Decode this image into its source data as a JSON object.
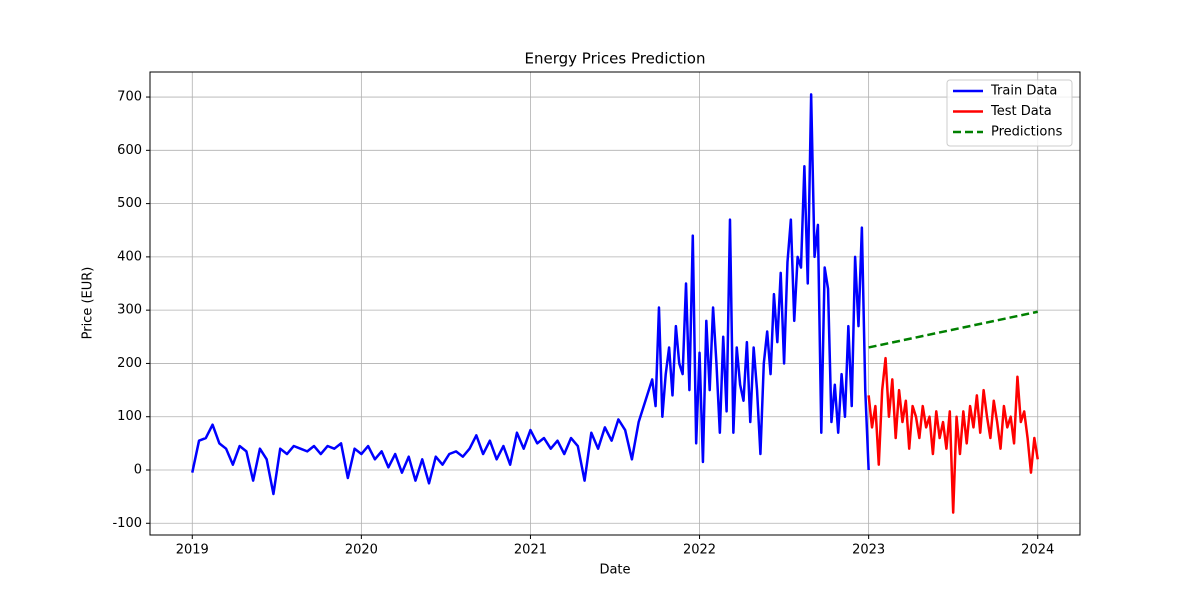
{
  "chart_data": {
    "type": "line",
    "title": "Energy Prices Prediction",
    "xlabel": "Date",
    "ylabel": "Price (EUR)",
    "xlim": [
      2018.75,
      2024.25
    ],
    "xticks": [
      2019,
      2020,
      2021,
      2022,
      2023,
      2024
    ],
    "ylim": [
      -122,
      747
    ],
    "yticks": [
      -100,
      0,
      100,
      200,
      300,
      400,
      500,
      600,
      700
    ],
    "grid": true,
    "legend": "upper right",
    "series": [
      {
        "name": "Train Data",
        "color": "#0000ff",
        "linestyle": "solid",
        "x": [
          2019.0,
          2019.04,
          2019.08,
          2019.12,
          2019.16,
          2019.2,
          2019.24,
          2019.28,
          2019.32,
          2019.36,
          2019.4,
          2019.44,
          2019.48,
          2019.52,
          2019.56,
          2019.6,
          2019.64,
          2019.68,
          2019.72,
          2019.76,
          2019.8,
          2019.84,
          2019.88,
          2019.92,
          2019.96,
          2020.0,
          2020.04,
          2020.08,
          2020.12,
          2020.16,
          2020.2,
          2020.24,
          2020.28,
          2020.32,
          2020.36,
          2020.4,
          2020.44,
          2020.48,
          2020.52,
          2020.56,
          2020.6,
          2020.64,
          2020.68,
          2020.72,
          2020.76,
          2020.8,
          2020.84,
          2020.88,
          2020.92,
          2020.96,
          2021.0,
          2021.04,
          2021.08,
          2021.12,
          2021.16,
          2021.2,
          2021.24,
          2021.28,
          2021.32,
          2021.36,
          2021.4,
          2021.44,
          2021.48,
          2021.52,
          2021.56,
          2021.6,
          2021.64,
          2021.68,
          2021.72,
          2021.74,
          2021.76,
          2021.78,
          2021.8,
          2021.82,
          2021.84,
          2021.86,
          2021.88,
          2021.9,
          2021.92,
          2021.94,
          2021.96,
          2021.98,
          2022.0,
          2022.02,
          2022.04,
          2022.06,
          2022.08,
          2022.1,
          2022.12,
          2022.14,
          2022.16,
          2022.18,
          2022.2,
          2022.22,
          2022.24,
          2022.26,
          2022.28,
          2022.3,
          2022.32,
          2022.34,
          2022.36,
          2022.38,
          2022.4,
          2022.42,
          2022.44,
          2022.46,
          2022.48,
          2022.5,
          2022.52,
          2022.54,
          2022.56,
          2022.58,
          2022.6,
          2022.62,
          2022.64,
          2022.66,
          2022.68,
          2022.7,
          2022.72,
          2022.74,
          2022.76,
          2022.78,
          2022.8,
          2022.82,
          2022.84,
          2022.86,
          2022.88,
          2022.9,
          2022.92,
          2022.94,
          2022.96,
          2022.98,
          2023.0
        ],
        "values": [
          -5,
          55,
          60,
          85,
          50,
          40,
          10,
          45,
          35,
          -20,
          40,
          20,
          -45,
          40,
          30,
          45,
          40,
          35,
          45,
          30,
          45,
          40,
          50,
          -15,
          40,
          30,
          45,
          20,
          35,
          5,
          30,
          -5,
          25,
          -20,
          20,
          -25,
          25,
          10,
          30,
          35,
          25,
          40,
          65,
          30,
          55,
          20,
          45,
          10,
          70,
          40,
          75,
          50,
          60,
          40,
          55,
          30,
          60,
          45,
          -20,
          70,
          40,
          80,
          55,
          95,
          75,
          20,
          90,
          130,
          170,
          120,
          305,
          100,
          180,
          230,
          140,
          270,
          200,
          180,
          350,
          150,
          440,
          50,
          220,
          15,
          280,
          150,
          305,
          200,
          70,
          250,
          110,
          470,
          70,
          230,
          160,
          130,
          240,
          90,
          230,
          150,
          30,
          200,
          260,
          180,
          330,
          240,
          370,
          200,
          390,
          470,
          280,
          400,
          380,
          570,
          350,
          705,
          400,
          460,
          70,
          380,
          340,
          90,
          160,
          70,
          180,
          100,
          270,
          120,
          400,
          270,
          455,
          150,
          0
        ]
      },
      {
        "name": "Test Data",
        "color": "#ff0000",
        "linestyle": "solid",
        "x": [
          2023.0,
          2023.02,
          2023.04,
          2023.06,
          2023.08,
          2023.1,
          2023.12,
          2023.14,
          2023.16,
          2023.18,
          2023.2,
          2023.22,
          2023.24,
          2023.26,
          2023.28,
          2023.3,
          2023.32,
          2023.34,
          2023.36,
          2023.38,
          2023.4,
          2023.42,
          2023.44,
          2023.46,
          2023.48,
          2023.5,
          2023.52,
          2023.54,
          2023.56,
          2023.58,
          2023.6,
          2023.62,
          2023.64,
          2023.66,
          2023.68,
          2023.7,
          2023.72,
          2023.74,
          2023.76,
          2023.78,
          2023.8,
          2023.82,
          2023.84,
          2023.86,
          2023.88,
          2023.9,
          2023.92,
          2023.94,
          2023.96,
          2023.98,
          2024.0
        ],
        "values": [
          140,
          80,
          120,
          10,
          150,
          210,
          100,
          170,
          60,
          150,
          90,
          130,
          40,
          120,
          100,
          60,
          120,
          80,
          100,
          30,
          110,
          60,
          90,
          40,
          110,
          -80,
          100,
          30,
          110,
          50,
          120,
          80,
          140,
          70,
          150,
          100,
          60,
          130,
          90,
          40,
          120,
          80,
          100,
          50,
          175,
          90,
          110,
          60,
          -5,
          60,
          20
        ]
      },
      {
        "name": "Predictions",
        "color": "#008000",
        "linestyle": "dashed",
        "x": [
          2023.0,
          2024.0
        ],
        "values": [
          230,
          297
        ]
      }
    ]
  }
}
